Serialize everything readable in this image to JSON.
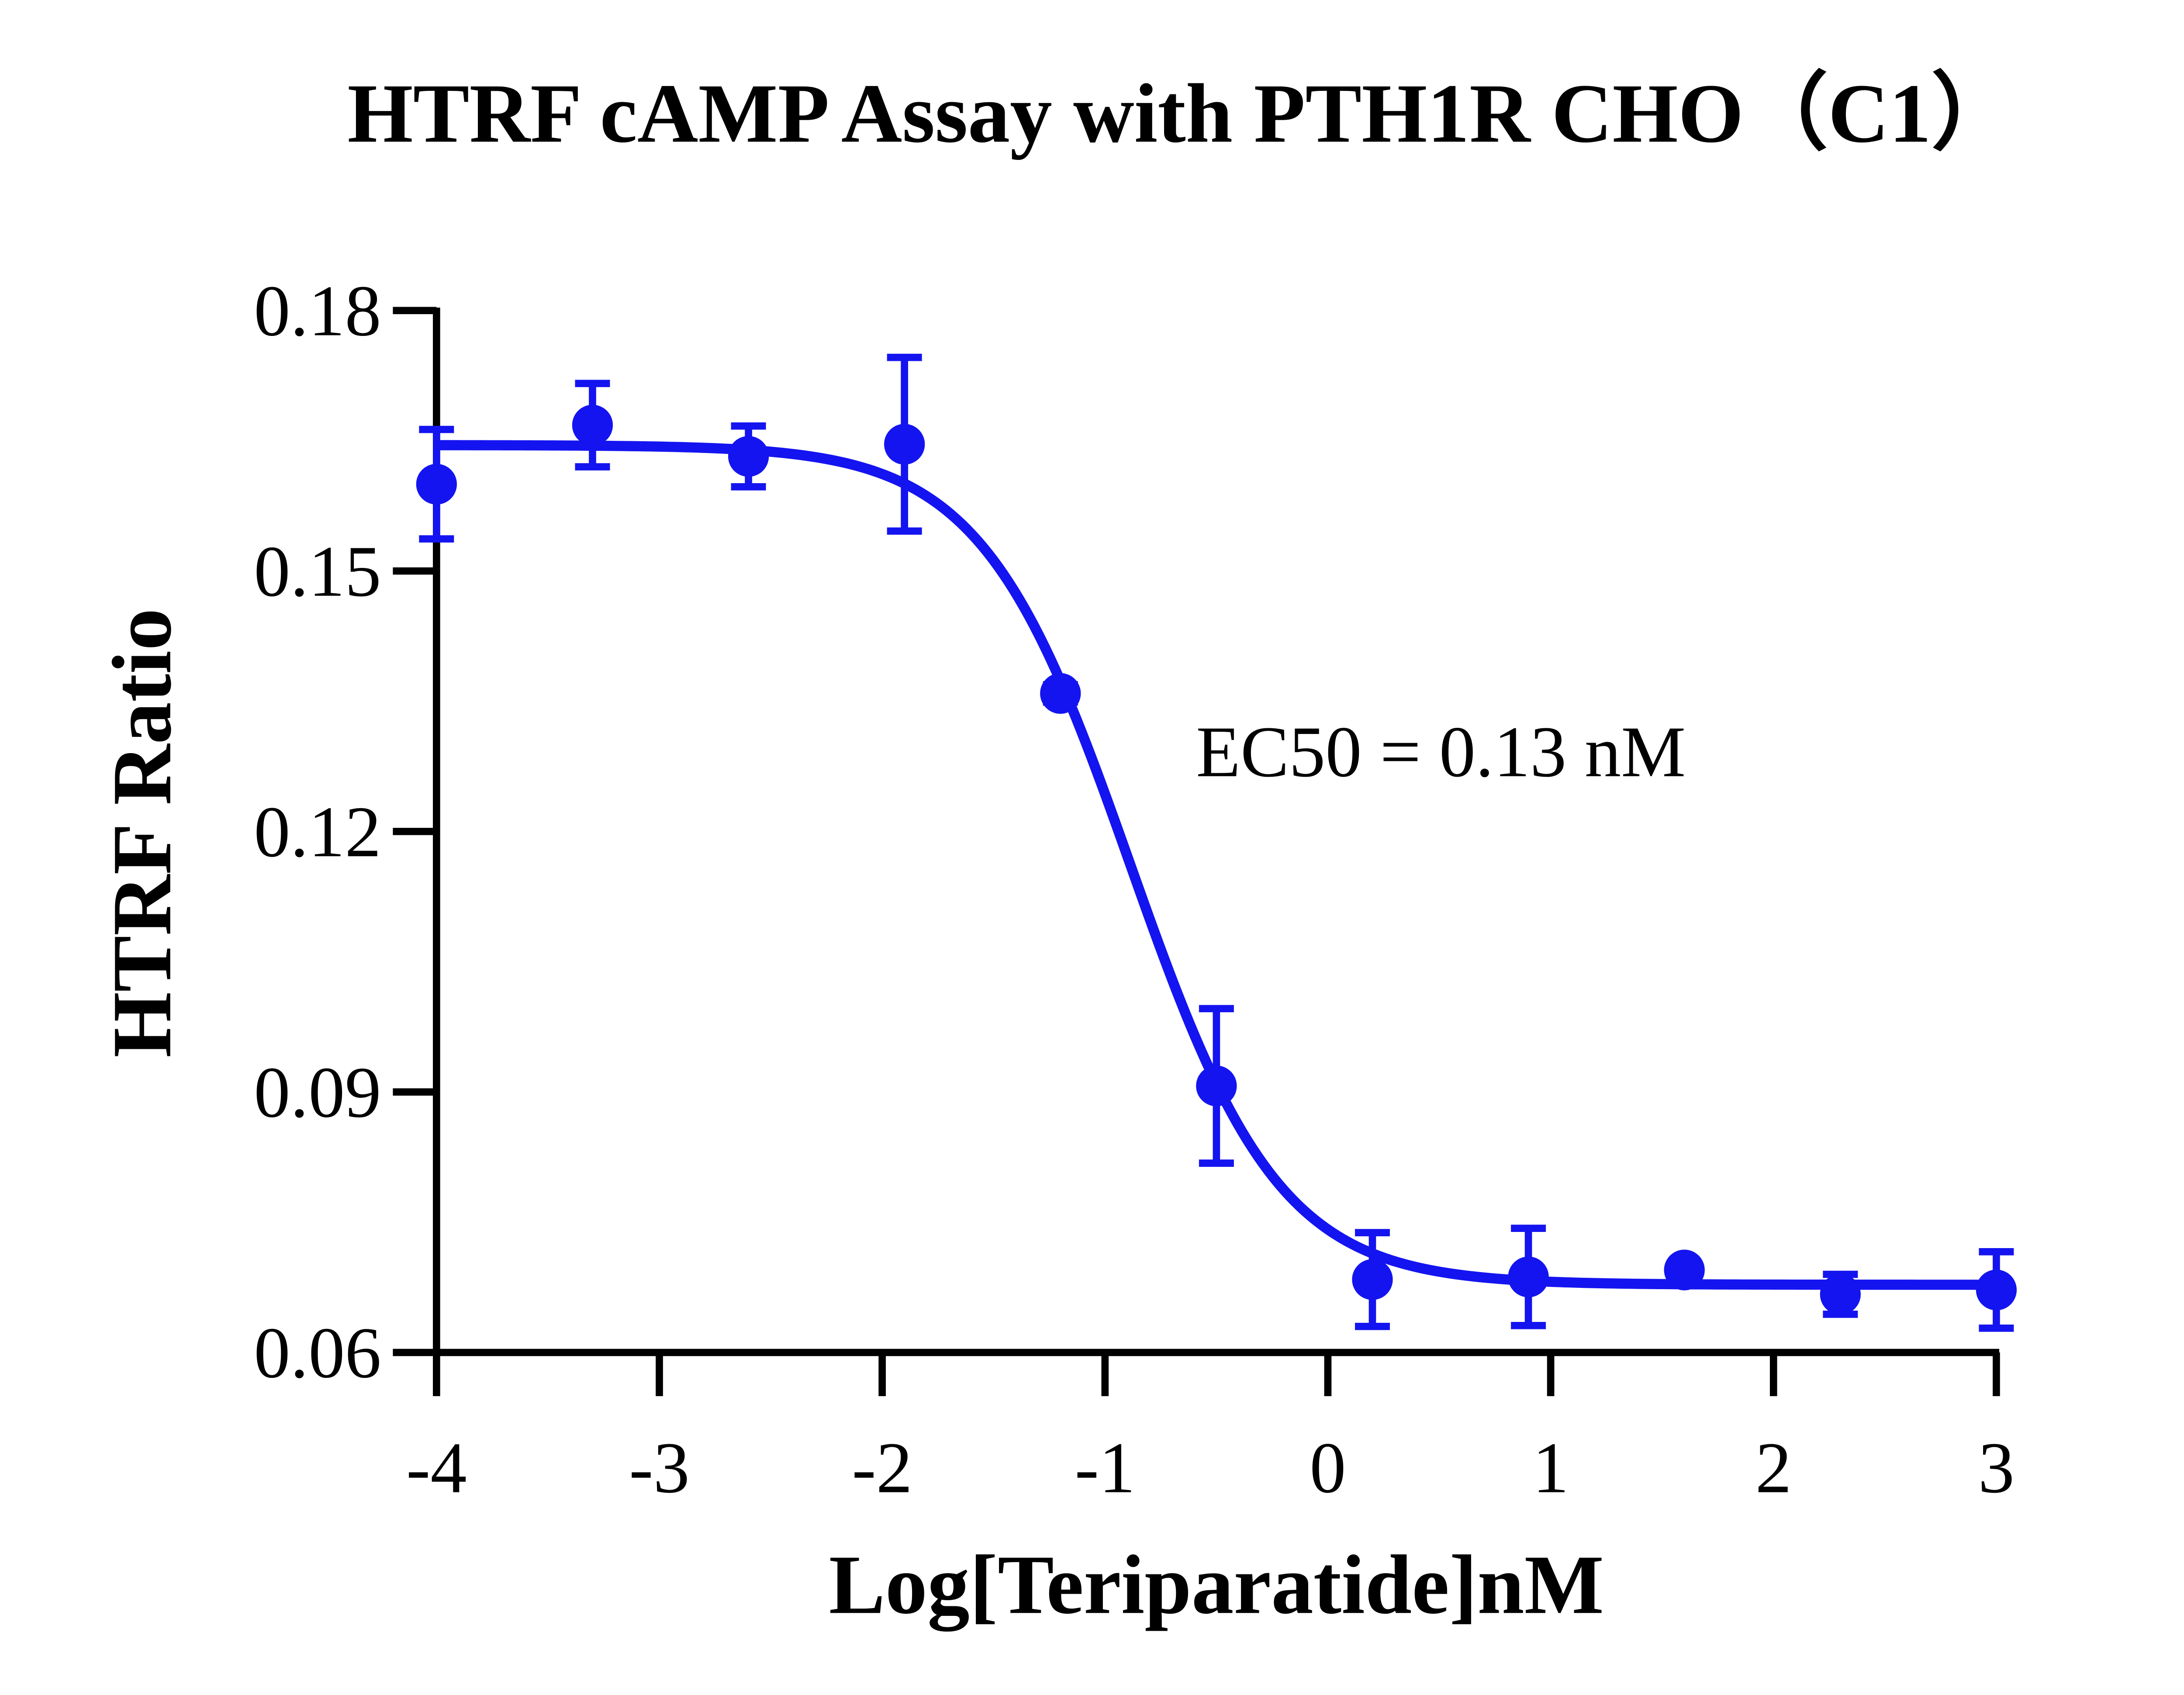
{
  "chart_data": {
    "type": "dose-response",
    "title": "HTRF cAMP Assay with PTH1R CHO（C1）",
    "x_label": "Log[Teriparatide]nM",
    "y_label": "HTRF Ratio",
    "annotation": "EC50 = 0.13 nM",
    "x": [
      -4,
      -3.3,
      -2.6,
      -1.9,
      -1.2,
      -0.5,
      0.2,
      0.9,
      1.6,
      2.3,
      3
    ],
    "series": [
      {
        "color": "#1414f0",
        "values": [
          0.16,
          0.1668,
          0.1632,
          0.1646,
          0.1359,
          0.0907,
          0.0684,
          0.0687,
          0.0695,
          0.0667,
          0.0672
        ],
        "errors": [
          0.0063,
          0.0048,
          0.0035,
          0.01,
          0.001,
          0.0089,
          0.0054,
          0.0056,
          0,
          0.0023,
          0.0044
        ]
      }
    ],
    "fit": {
      "top": 0.1645,
      "bottom": 0.0678,
      "log_ec50": -0.886,
      "hill": 1.3
    },
    "xlim": [
      -4,
      3
    ],
    "xticks": [
      -4,
      -3,
      -2,
      -1,
      0,
      1,
      2,
      3
    ],
    "ylim": [
      0.06,
      0.18
    ],
    "yticks": [
      0.06,
      0.09,
      0.12,
      0.15,
      0.18
    ]
  }
}
